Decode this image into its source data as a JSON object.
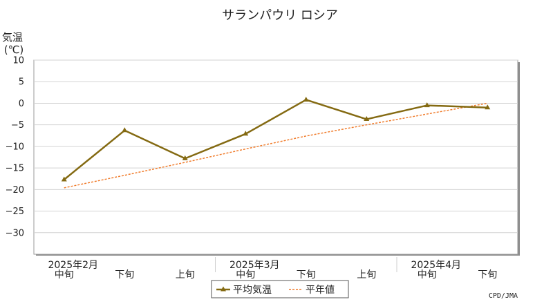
{
  "chart_data": {
    "type": "line",
    "title": "サランパウリ ロシア",
    "ylabel_line1": "気温",
    "ylabel_line2": "(℃)",
    "ylim": [
      -35,
      10
    ],
    "yticks": [
      10,
      5,
      0,
      -5,
      -10,
      -15,
      -20,
      -25,
      -30
    ],
    "categories": [
      "中旬",
      "下旬",
      "上旬",
      "中旬",
      "下旬",
      "上旬",
      "中旬",
      "下旬"
    ],
    "month_labels": [
      {
        "label": "2025年2月",
        "at": 0
      },
      {
        "label": "2025年3月",
        "at": 3
      },
      {
        "label": "2025年4月",
        "at": 6
      }
    ],
    "series": [
      {
        "name": "平均気温",
        "color": "#846a12",
        "marker": "triangle",
        "values": [
          -17.7,
          -6.3,
          -12.8,
          -7.1,
          0.8,
          -3.7,
          -0.5,
          -1.0
        ]
      },
      {
        "name": "平年値",
        "color": "#f07c2c",
        "style": "dashed",
        "values": [
          -19.6,
          -16.7,
          -13.7,
          -10.6,
          -7.6,
          -5.0,
          -2.5,
          0.0
        ]
      }
    ],
    "grid": true,
    "legend_position": "bottom-center",
    "credit": "CPD/JMA"
  }
}
